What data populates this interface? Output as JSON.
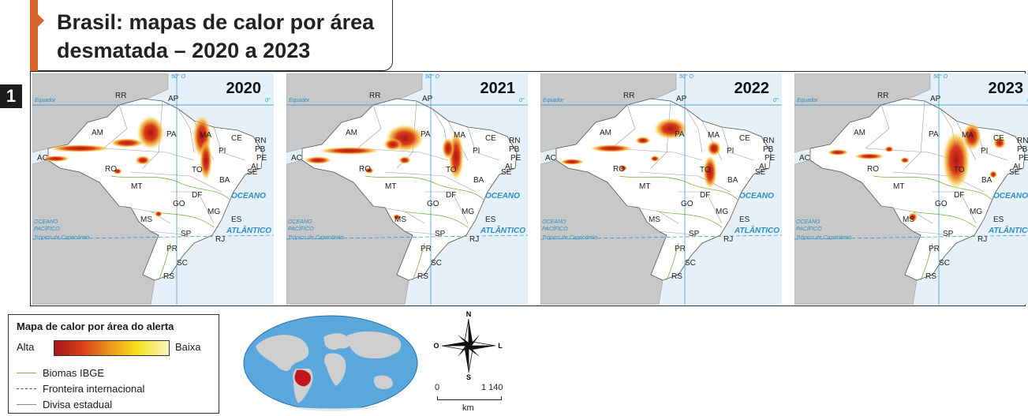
{
  "figure_number": "1",
  "title": "Brasil: mapas de calor por área desmatada – 2020 a 2023",
  "maps": [
    {
      "year": "2020"
    },
    {
      "year": "2021"
    },
    {
      "year": "2022"
    },
    {
      "year": "2023"
    }
  ],
  "map_labels": {
    "equator": "Equador",
    "equator_degree": "0°",
    "meridian": "50° O",
    "tropic": "Trópico de Capricórnio",
    "ocean_atlantic_1": "OCEANO",
    "ocean_atlantic_2": "ATLÂNTICO",
    "ocean_pacific_1": "OCEANO",
    "ocean_pacific_2": "PACÍFICO"
  },
  "states": [
    "RR",
    "AP",
    "AM",
    "PA",
    "MA",
    "CE",
    "RN",
    "PB",
    "PE",
    "AL",
    "SE",
    "PI",
    "AC",
    "RO",
    "TO",
    "BA",
    "MT",
    "DF",
    "GO",
    "MG",
    "ES",
    "MS",
    "SP",
    "RJ",
    "PR",
    "SC",
    "RS"
  ],
  "legend": {
    "title": "Mapa de calor por área do alerta",
    "high": "Alta",
    "low": "Baixa",
    "biomes": "Biomas IBGE",
    "border": "Fronteira internacional",
    "state_line": "Divisa estadual"
  },
  "compass": {
    "n": "N",
    "s": "S",
    "e": "L",
    "w": "O"
  },
  "scale": {
    "zero": "0",
    "max": "1 140",
    "unit": "km"
  },
  "colors": {
    "accent": "#d9622b",
    "heat_high": "#a8141a",
    "heat_low": "#fbf3c0",
    "biome": "#7ab648",
    "ocean": "#e6f0f8",
    "brazil": "#ffffff",
    "neighbors": "#c8c8c8"
  }
}
